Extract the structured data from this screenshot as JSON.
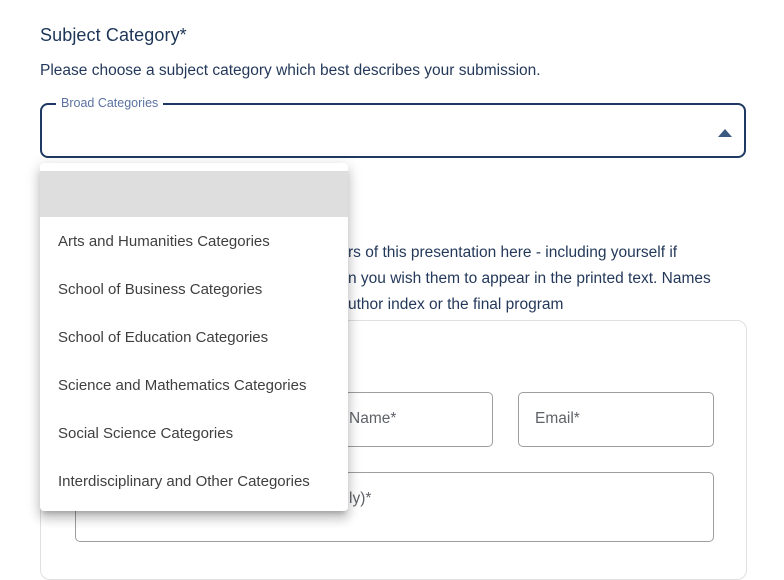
{
  "header": {
    "title": "Subject Category*",
    "description": "Please choose a subject category which best describes your submission."
  },
  "select": {
    "label": "Broad Categories",
    "value": "",
    "open": true,
    "collapse_icon": "caret-up"
  },
  "menu": {
    "items": [
      {
        "label": "",
        "selected": true
      },
      {
        "label": "Arts and Humanities Categories",
        "selected": false
      },
      {
        "label": "School of Business Categories",
        "selected": false
      },
      {
        "label": "School of Education Categories",
        "selected": false
      },
      {
        "label": "Science and Mathematics Categories",
        "selected": false
      },
      {
        "label": "Social Science Categories",
        "selected": false
      },
      {
        "label": "Interdisciplinary and Other Categories",
        "selected": false
      }
    ]
  },
  "authors": {
    "description_fragments": [
      "rs of this presentation here - including yourself if",
      "n you wish them to appear in the printed text. Names",
      "uthor index or the final program"
    ],
    "fields": {
      "name_label_fragment": "Name*",
      "email_label": "Email*",
      "affiliation_label_fragment": "ly)*"
    }
  },
  "colors": {
    "heading_text": "#1d3557",
    "body_text": "#24395a",
    "select_border": "#1e3a63",
    "select_label": "#5b72a0",
    "caret": "#3a5a80",
    "menu_selected_bg": "#dedede",
    "menu_item_text": "#3f3f3f",
    "field_border": "#9e9e9e",
    "field_label": "#5f6368",
    "card_border": "#e0e0e0"
  }
}
